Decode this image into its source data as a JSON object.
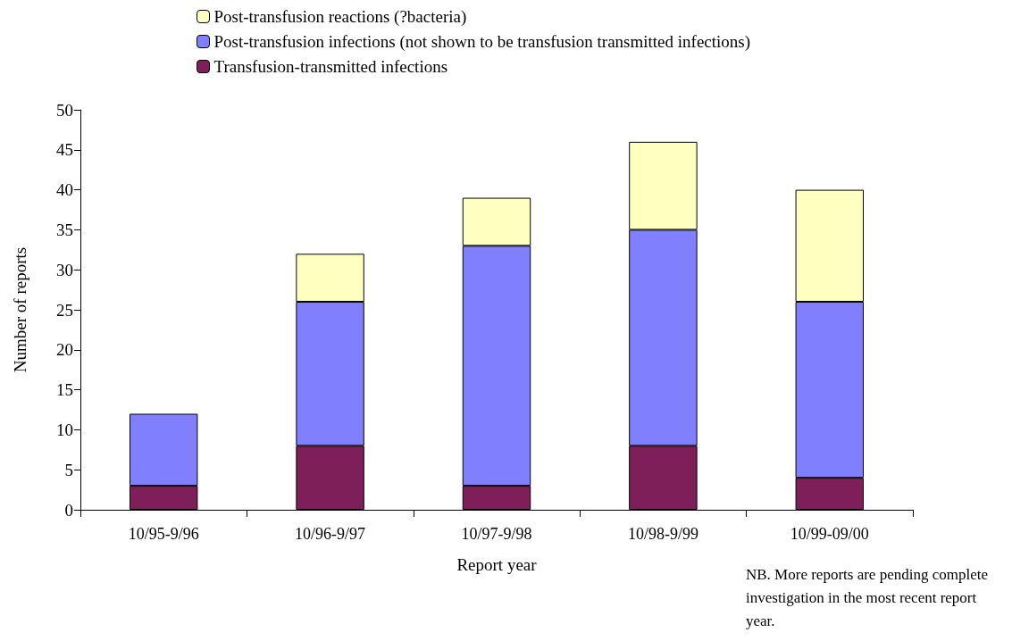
{
  "chart_data": {
    "type": "bar",
    "stacked": true,
    "xlabel": "Report year",
    "ylabel": "Number of reports",
    "categories": [
      "10/95-9/96",
      "10/96-9/97",
      "10/97-9/98",
      "10/98-9/99",
      "10/99-09/00"
    ],
    "series": [
      {
        "name": "Transfusion-transmitted infections",
        "color": "#7f1f5a",
        "values": [
          3,
          8,
          3,
          8,
          4
        ]
      },
      {
        "name": "Post-transfusion infections (not shown to be transfusion transmitted infections)",
        "color": "#8080ff",
        "values": [
          9,
          18,
          30,
          27,
          22
        ]
      },
      {
        "name": "Post-transfusion reactions (?bacteria)",
        "color": "#ffffc0",
        "values": [
          null,
          6,
          6,
          11,
          14
        ]
      }
    ],
    "ylim": [
      0,
      50
    ],
    "yticks": [
      0,
      5,
      10,
      15,
      20,
      25,
      30,
      35,
      40,
      45,
      50
    ],
    "grid": false,
    "legend": "top",
    "annotations": [
      "NB. More reports are pending complete investigation in the most recent report year."
    ]
  }
}
